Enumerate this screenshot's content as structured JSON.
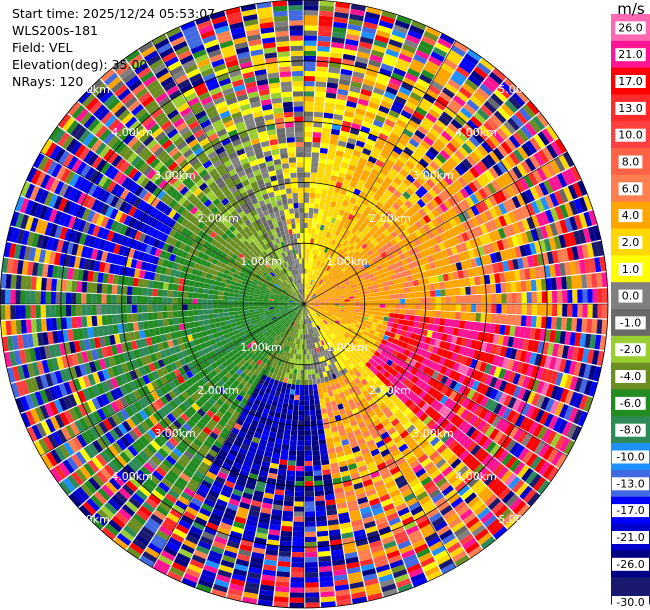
{
  "header": {
    "start_time": "Start time: 2025/12/24 05:53:07",
    "instrument": "WLS200s-181",
    "field": "Field: VEL",
    "elevation": "Elevation(deg): 35.00",
    "nrays": "NRays: 120"
  },
  "colorbar": {
    "unit": "m/s",
    "ticks": [
      "26.0",
      "21.0",
      "17.0",
      "13.0",
      "10.0",
      "8.0",
      "6.0",
      "4.0",
      "2.0",
      "1.0",
      "0.0",
      "-1.0",
      "-2.0",
      "-4.0",
      "-6.0",
      "-8.0",
      "-10.0",
      "-13.0",
      "-17.0",
      "-21.0",
      "-26.0",
      "-30.0"
    ],
    "colors": [
      "#ff69b4",
      "#ff1493",
      "#ff0000",
      "#ff2a2a",
      "#ff4040",
      "#ff6347",
      "#ff7f50",
      "#ffa500",
      "#ffd700",
      "#ffff00",
      "#808080",
      "#696969",
      "#9acd32",
      "#6b8e23",
      "#228b22",
      "#2e8b57",
      "#1e90ff",
      "#4169e1",
      "#0000ff",
      "#0000cd",
      "#000080",
      "#191970"
    ]
  },
  "chart_data": {
    "type": "heatmap",
    "projection": "polar",
    "field": "VEL",
    "n_rays": 120,
    "elevation_deg": 35.0,
    "range_rings_km": [
      1.0,
      2.0,
      3.0,
      4.0,
      5.0
    ],
    "ring_labels": [
      "1.00km",
      "2.00km",
      "3.00km",
      "4.00km",
      "5.00km"
    ],
    "max_range_km": 5.0,
    "vmin": -30.0,
    "vmax": 26.0,
    "colormap_bounds": [
      -30.0,
      -26.0,
      -21.0,
      -17.0,
      -13.0,
      -10.0,
      -8.0,
      -6.0,
      -4.0,
      -2.0,
      -1.0,
      0.0,
      1.0,
      2.0,
      4.0,
      6.0,
      8.0,
      10.0,
      13.0,
      17.0,
      21.0,
      26.0
    ],
    "pattern": {
      "near_range_east": "positive (yellow/orange)",
      "near_range_west": "negative (green/olive)",
      "south_southeast": "strong negative blues then positive reds",
      "far_range": "noise, mixed colors"
    },
    "grid": true,
    "legend": "right colorbar"
  }
}
